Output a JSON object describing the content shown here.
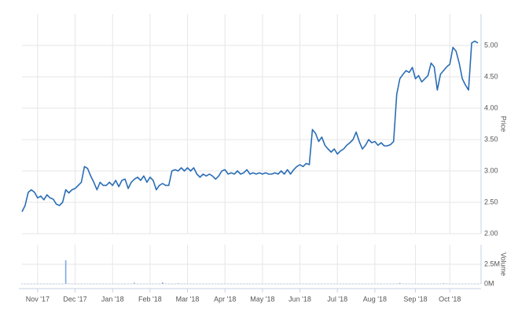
{
  "chart_data": [
    {
      "type": "line",
      "ylabel": "Price",
      "color": "#2a6db5",
      "grid": true,
      "ylim": [
        2,
        5.5
      ],
      "yticks": [
        {
          "value": 2,
          "label": "2.00"
        },
        {
          "value": 2.5,
          "label": "2.50"
        },
        {
          "value": 3,
          "label": "3.00"
        },
        {
          "value": 3.5,
          "label": "3.50"
        },
        {
          "value": 4,
          "label": "4.00"
        },
        {
          "value": 4.5,
          "label": "4.50"
        },
        {
          "value": 5,
          "label": "5.00"
        }
      ],
      "xlim": [
        0,
        146
      ],
      "xticks": [
        {
          "value": 5,
          "label": "Nov '17"
        },
        {
          "value": 17,
          "label": "Dec '17"
        },
        {
          "value": 29,
          "label": "Jan '18"
        },
        {
          "value": 41,
          "label": "Feb '18"
        },
        {
          "value": 53,
          "label": "Mar '18"
        },
        {
          "value": 65,
          "label": "Apr '18"
        },
        {
          "value": 77,
          "label": "May '18"
        },
        {
          "value": 89,
          "label": "Jun '18"
        },
        {
          "value": 101,
          "label": "Jul '18"
        },
        {
          "value": 113,
          "label": "Aug '18"
        },
        {
          "value": 126,
          "label": "Sep '18"
        },
        {
          "value": 137,
          "label": "Oct '18"
        }
      ],
      "values": [
        2.35,
        2.45,
        2.66,
        2.7,
        2.66,
        2.57,
        2.6,
        2.54,
        2.62,
        2.57,
        2.55,
        2.47,
        2.45,
        2.5,
        2.7,
        2.65,
        2.7,
        2.72,
        2.77,
        2.82,
        3.07,
        3.04,
        2.92,
        2.82,
        2.7,
        2.82,
        2.77,
        2.77,
        2.82,
        2.77,
        2.85,
        2.75,
        2.85,
        2.87,
        2.72,
        2.82,
        2.87,
        2.9,
        2.85,
        2.92,
        2.82,
        2.9,
        2.85,
        2.7,
        2.77,
        2.8,
        2.77,
        2.77,
        3.0,
        3.02,
        3.0,
        3.05,
        3.0,
        3.05,
        3.0,
        3.05,
        2.95,
        2.9,
        2.95,
        2.92,
        2.95,
        2.92,
        2.87,
        2.92,
        3.0,
        3.02,
        2.95,
        2.97,
        2.95,
        3.0,
        2.95,
        2.97,
        3.02,
        2.95,
        2.97,
        2.95,
        2.97,
        2.95,
        2.97,
        2.95,
        2.95,
        2.97,
        2.95,
        3.0,
        2.95,
        3.02,
        2.95,
        3.02,
        3.07,
        3.1,
        3.07,
        3.12,
        3.1,
        3.66,
        3.6,
        3.47,
        3.54,
        3.41,
        3.35,
        3.3,
        3.35,
        3.27,
        3.32,
        3.35,
        3.41,
        3.45,
        3.5,
        3.62,
        3.47,
        3.35,
        3.41,
        3.5,
        3.45,
        3.47,
        3.41,
        3.45,
        3.4,
        3.4,
        3.42,
        3.47,
        4.22,
        4.47,
        4.54,
        4.6,
        4.57,
        4.65,
        4.47,
        4.52,
        4.42,
        4.47,
        4.52,
        4.72,
        4.66,
        4.29,
        4.54,
        4.6,
        4.66,
        4.7,
        4.97,
        4.91,
        4.72,
        4.47,
        4.37,
        4.29,
        5.04,
        5.07,
        5.04
      ]
    },
    {
      "type": "bar",
      "ylabel": "Volume",
      "color": "#7ea9e1",
      "ylim": [
        0,
        5000000
      ],
      "yticks": [
        {
          "value": 0,
          "label": "0M"
        },
        {
          "value": 2500000,
          "label": "2.5M"
        }
      ],
      "values": [
        30000,
        20000,
        30000,
        20000,
        30000,
        20000,
        30000,
        20000,
        30000,
        20000,
        30000,
        20000,
        30000,
        20000,
        3000000,
        30000,
        20000,
        30000,
        20000,
        30000,
        30000,
        20000,
        30000,
        20000,
        30000,
        20000,
        30000,
        20000,
        30000,
        20000,
        30000,
        20000,
        30000,
        20000,
        30000,
        20000,
        150000,
        20000,
        30000,
        20000,
        30000,
        20000,
        30000,
        20000,
        30000,
        200000,
        30000,
        20000,
        30000,
        20000,
        80000,
        20000,
        30000,
        20000,
        30000,
        20000,
        30000,
        20000,
        30000,
        20000,
        30000,
        20000,
        30000,
        20000,
        30000,
        20000,
        30000,
        20000,
        30000,
        20000,
        30000,
        20000,
        30000,
        20000,
        30000,
        20000,
        30000,
        20000,
        30000,
        20000,
        30000,
        20000,
        30000,
        20000,
        30000,
        20000,
        30000,
        20000,
        30000,
        20000,
        30000,
        20000,
        30000,
        20000,
        30000,
        20000,
        30000,
        20000,
        30000,
        20000,
        30000,
        20000,
        30000,
        20000,
        30000,
        20000,
        30000,
        20000,
        30000,
        20000,
        30000,
        20000,
        30000,
        20000,
        30000,
        20000,
        30000,
        20000,
        30000,
        20000,
        30000,
        120000,
        30000,
        20000,
        30000,
        20000,
        30000,
        20000,
        30000,
        20000,
        30000,
        20000,
        30000,
        20000,
        30000,
        80000,
        30000,
        20000,
        30000,
        20000,
        30000,
        20000,
        30000,
        20000,
        30000,
        20000,
        30000
      ]
    }
  ]
}
